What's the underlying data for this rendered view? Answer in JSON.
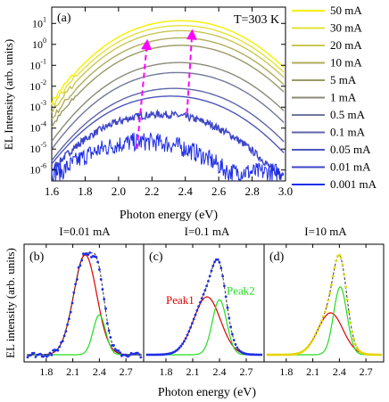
{
  "colors": {
    "currents": [
      "#f5f000",
      "#e4e13a",
      "#c9c753",
      "#b0ad5c",
      "#9b9968",
      "#8b8b7a",
      "#72789a",
      "#5f66a8",
      "#4d55bc",
      "#3e45c8",
      "#1f2ee6"
    ],
    "red": "#e00000",
    "green": "#22dd22",
    "blue_dots": "#1f2ee6",
    "yellow_dots": "#e6d400",
    "magenta": "#ff00ff"
  },
  "chart_data": [
    {
      "panel": "a",
      "type": "line",
      "panel_label": "(a)",
      "annotation": "T=303 K",
      "xlabel": "Photon energy (eV)",
      "ylabel": "EL Intensity (arb. units)",
      "xlim": [
        1.6,
        3.0
      ],
      "ylim": [
        3e-07,
        60
      ],
      "yscale": "log",
      "xticks": [
        "1.6",
        "1.8",
        "2.0",
        "2.2",
        "2.4",
        "2.6",
        "2.8",
        "3.0"
      ],
      "yticks": [
        "10^1",
        "10^0",
        "10^-1",
        "10^-2",
        "10^-3",
        "10^-4",
        "10^-5",
        "10^-6"
      ],
      "legend_position": "right",
      "series": [
        {
          "name": "50 mA",
          "peak_eV": 2.42,
          "peak_value": 12
        },
        {
          "name": "30 mA",
          "peak_eV": 2.42,
          "peak_value": 7
        },
        {
          "name": "20 mA",
          "peak_eV": 2.42,
          "peak_value": 4
        },
        {
          "name": "10 mA",
          "peak_eV": 2.42,
          "peak_value": 1.8
        },
        {
          "name": "5 mA",
          "peak_eV": 2.42,
          "peak_value": 0.8
        },
        {
          "name": "1 mA",
          "peak_eV": 2.41,
          "peak_value": 0.12
        },
        {
          "name": "0.5 mA",
          "peak_eV": 2.4,
          "peak_value": 0.04
        },
        {
          "name": "0.1 mA",
          "peak_eV": 2.38,
          "peak_value": 0.007
        },
        {
          "name": "0.05 mA",
          "peak_eV": 2.36,
          "peak_value": 0.003
        },
        {
          "name": "0.01 mA",
          "peak_eV": 2.3,
          "peak_value": 0.0004
        },
        {
          "name": "0.001 mA",
          "peak_eV": 2.2,
          "peak_value": 2e-05
        }
      ],
      "arrows": [
        {
          "from": [
            2.11,
            1e-05
          ],
          "to": [
            2.17,
            1.0
          ]
        },
        {
          "from": [
            2.41,
            0.0005
          ],
          "to": [
            2.44,
            3.0
          ]
        }
      ]
    },
    {
      "panel": "b",
      "type": "line",
      "title": "I=0.01 mA",
      "panel_label": "(b)",
      "xlim": [
        1.55,
        2.9
      ],
      "xticks": [
        "1.8",
        "2.1",
        "2.4",
        "2.7"
      ],
      "peak1": {
        "center": 2.24,
        "amplitude": 1.0,
        "width": 0.13
      },
      "peak2": {
        "center": 2.4,
        "amplitude": 0.4,
        "width": 0.07
      }
    },
    {
      "panel": "c",
      "type": "line",
      "title": "I=0.1 mA",
      "panel_label": "(c)",
      "xlim": [
        1.55,
        2.9
      ],
      "xticks": [
        "1.8",
        "2.1",
        "2.4",
        "2.7"
      ],
      "peak1": {
        "label": "Peak1",
        "center": 2.26,
        "amplitude": 0.58,
        "width": 0.15
      },
      "peak2": {
        "label": "Peak2",
        "center": 2.4,
        "amplitude": 0.55,
        "width": 0.08
      }
    },
    {
      "panel": "d",
      "type": "line",
      "title": "I=10 mA",
      "panel_label": "(d)",
      "xlim": [
        1.55,
        2.9
      ],
      "xticks": [
        "1.8",
        "2.1",
        "2.4",
        "2.7"
      ],
      "peak1": {
        "center": 2.3,
        "amplitude": 0.42,
        "width": 0.14
      },
      "peak2": {
        "center": 2.41,
        "amplitude": 0.68,
        "width": 0.075
      }
    }
  ],
  "bottom": {
    "xlabel": "Photon energy (eV)",
    "ylabel": "EL intensity (arb. units)"
  }
}
